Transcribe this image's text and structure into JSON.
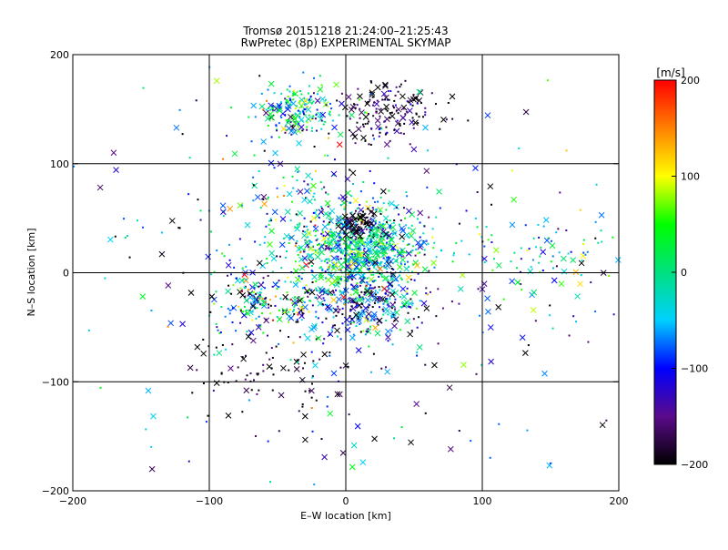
{
  "chart_data": {
    "type": "scatter",
    "title": "Tromsø 20151218 21:24:00–21:25:43",
    "subtitle": "RwPretec (8p) EXPERIMENTAL SKYMAP",
    "xlabel": "E–W location [km]",
    "ylabel": "N–S location [km]",
    "xlim": [
      -200,
      200
    ],
    "ylim": [
      -200,
      200
    ],
    "xticks": [
      -200,
      -100,
      0,
      100,
      200
    ],
    "yticks": [
      -200,
      -100,
      0,
      100,
      200
    ],
    "grid": true,
    "colorbar": {
      "unit": "[m/s]",
      "range": [
        -200,
        200
      ],
      "ticks": [
        200,
        100,
        0,
        -100,
        -200
      ],
      "colormap": "black-purple-blue-cyan-green-yellow-red",
      "stops": [
        "#000000",
        "#5a0a8a",
        "#0000ff",
        "#00d0ff",
        "#00e080",
        "#00ff00",
        "#ffff00",
        "#ff8000",
        "#ff0000"
      ]
    },
    "marker_types": [
      "x",
      "dot"
    ],
    "clusters": [
      {
        "x": 10,
        "y": 20,
        "sx": 22,
        "sy": 20,
        "n": 700,
        "vmean": -20,
        "vsd": 70
      },
      {
        "x": 15,
        "y": -30,
        "sx": 22,
        "sy": 16,
        "n": 260,
        "vmean": -110,
        "vsd": 80
      },
      {
        "x": -55,
        "y": -25,
        "sx": 22,
        "sy": 15,
        "n": 200,
        "vmean": -30,
        "vsd": 110
      },
      {
        "x": -35,
        "y": 150,
        "sx": 15,
        "sy": 12,
        "n": 180,
        "vmean": -30,
        "vsd": 80
      },
      {
        "x": 30,
        "y": 145,
        "sx": 18,
        "sy": 15,
        "n": 160,
        "vmean": -180,
        "vsd": 40
      },
      {
        "x": 10,
        "y": 45,
        "sx": 8,
        "sy": 6,
        "n": 80,
        "vmean": -200,
        "vsd": 20
      },
      {
        "x": -50,
        "y": -90,
        "sx": 30,
        "sy": 25,
        "n": 90,
        "vmean": -190,
        "vsd": 30
      },
      {
        "x": 150,
        "y": 15,
        "sx": 28,
        "sy": 25,
        "n": 90,
        "vmean": -30,
        "vsd": 70
      },
      {
        "x": -30,
        "y": 60,
        "sx": 30,
        "sy": 25,
        "n": 140,
        "vmean": -40,
        "vsd": 90
      },
      {
        "x": 0,
        "y": 0,
        "sx": 110,
        "sy": 110,
        "n": 350,
        "vmean": -80,
        "vsd": 110
      }
    ]
  }
}
